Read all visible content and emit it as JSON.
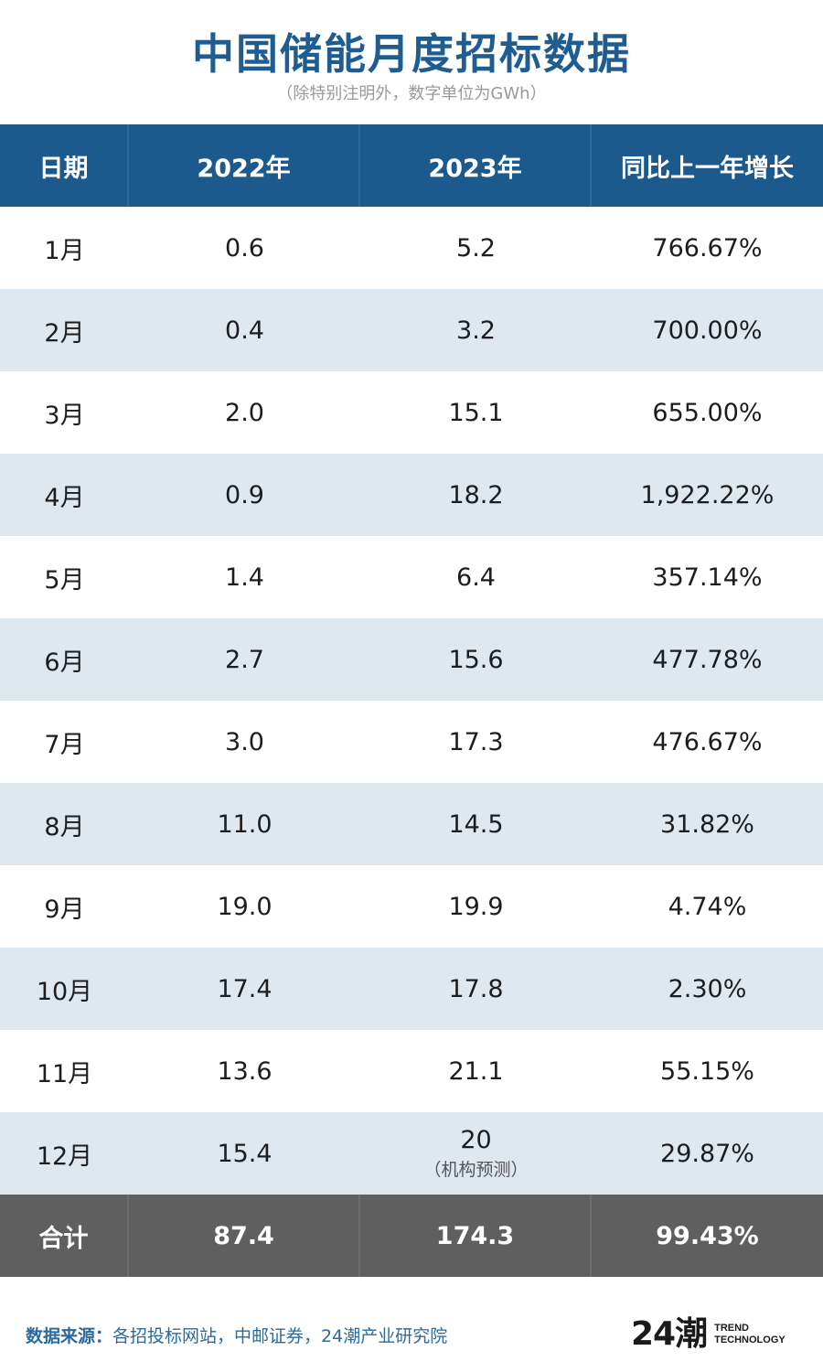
{
  "title": "中国储能月度招标数据",
  "subtitle": "（除特别注明外，数字单位为GWh）",
  "chart_data": {
    "type": "table",
    "columns": [
      "日期",
      "2022年",
      "2023年",
      "同比上一年增长"
    ],
    "rows": [
      {
        "month": "1月",
        "y2022": "0.6",
        "y2023": "5.2",
        "growth": "766.67%"
      },
      {
        "month": "2月",
        "y2022": "0.4",
        "y2023": "3.2",
        "growth": "700.00%"
      },
      {
        "month": "3月",
        "y2022": "2.0",
        "y2023": "15.1",
        "growth": "655.00%"
      },
      {
        "month": "4月",
        "y2022": "0.9",
        "y2023": "18.2",
        "growth": "1,922.22%"
      },
      {
        "month": "5月",
        "y2022": "1.4",
        "y2023": "6.4",
        "growth": "357.14%"
      },
      {
        "month": "6月",
        "y2022": "2.7",
        "y2023": "15.6",
        "growth": "477.78%"
      },
      {
        "month": "7月",
        "y2022": "3.0",
        "y2023": "17.3",
        "growth": "476.67%"
      },
      {
        "month": "8月",
        "y2022": "11.0",
        "y2023": "14.5",
        "growth": "31.82%"
      },
      {
        "month": "9月",
        "y2022": "19.0",
        "y2023": "19.9",
        "growth": "4.74%"
      },
      {
        "month": "10月",
        "y2022": "17.4",
        "y2023": "17.8",
        "growth": "2.30%"
      },
      {
        "month": "11月",
        "y2022": "13.6",
        "y2023": "21.1",
        "growth": "55.15%"
      },
      {
        "month": "12月",
        "y2022": "15.4",
        "y2023": "20",
        "y2023_note": "（机构预测）",
        "growth": "29.87%"
      }
    ],
    "total": {
      "label": "合计",
      "y2022": "87.4",
      "y2023": "174.3",
      "growth": "99.43%"
    }
  },
  "footer": {
    "label": "数据来源：",
    "sources": "各招投标网站，中邮证券，24潮产业研究院"
  },
  "logo": {
    "mark": "24潮",
    "line1": "TREND",
    "line2": "TECHNOLOGY"
  },
  "colors": {
    "title": "#1f5d91",
    "header_bg": "#1c5a8d",
    "stripe_bg": "#dfe7ef",
    "total_bg": "#5f5f5f",
    "footer_text": "#2c6a9e"
  }
}
